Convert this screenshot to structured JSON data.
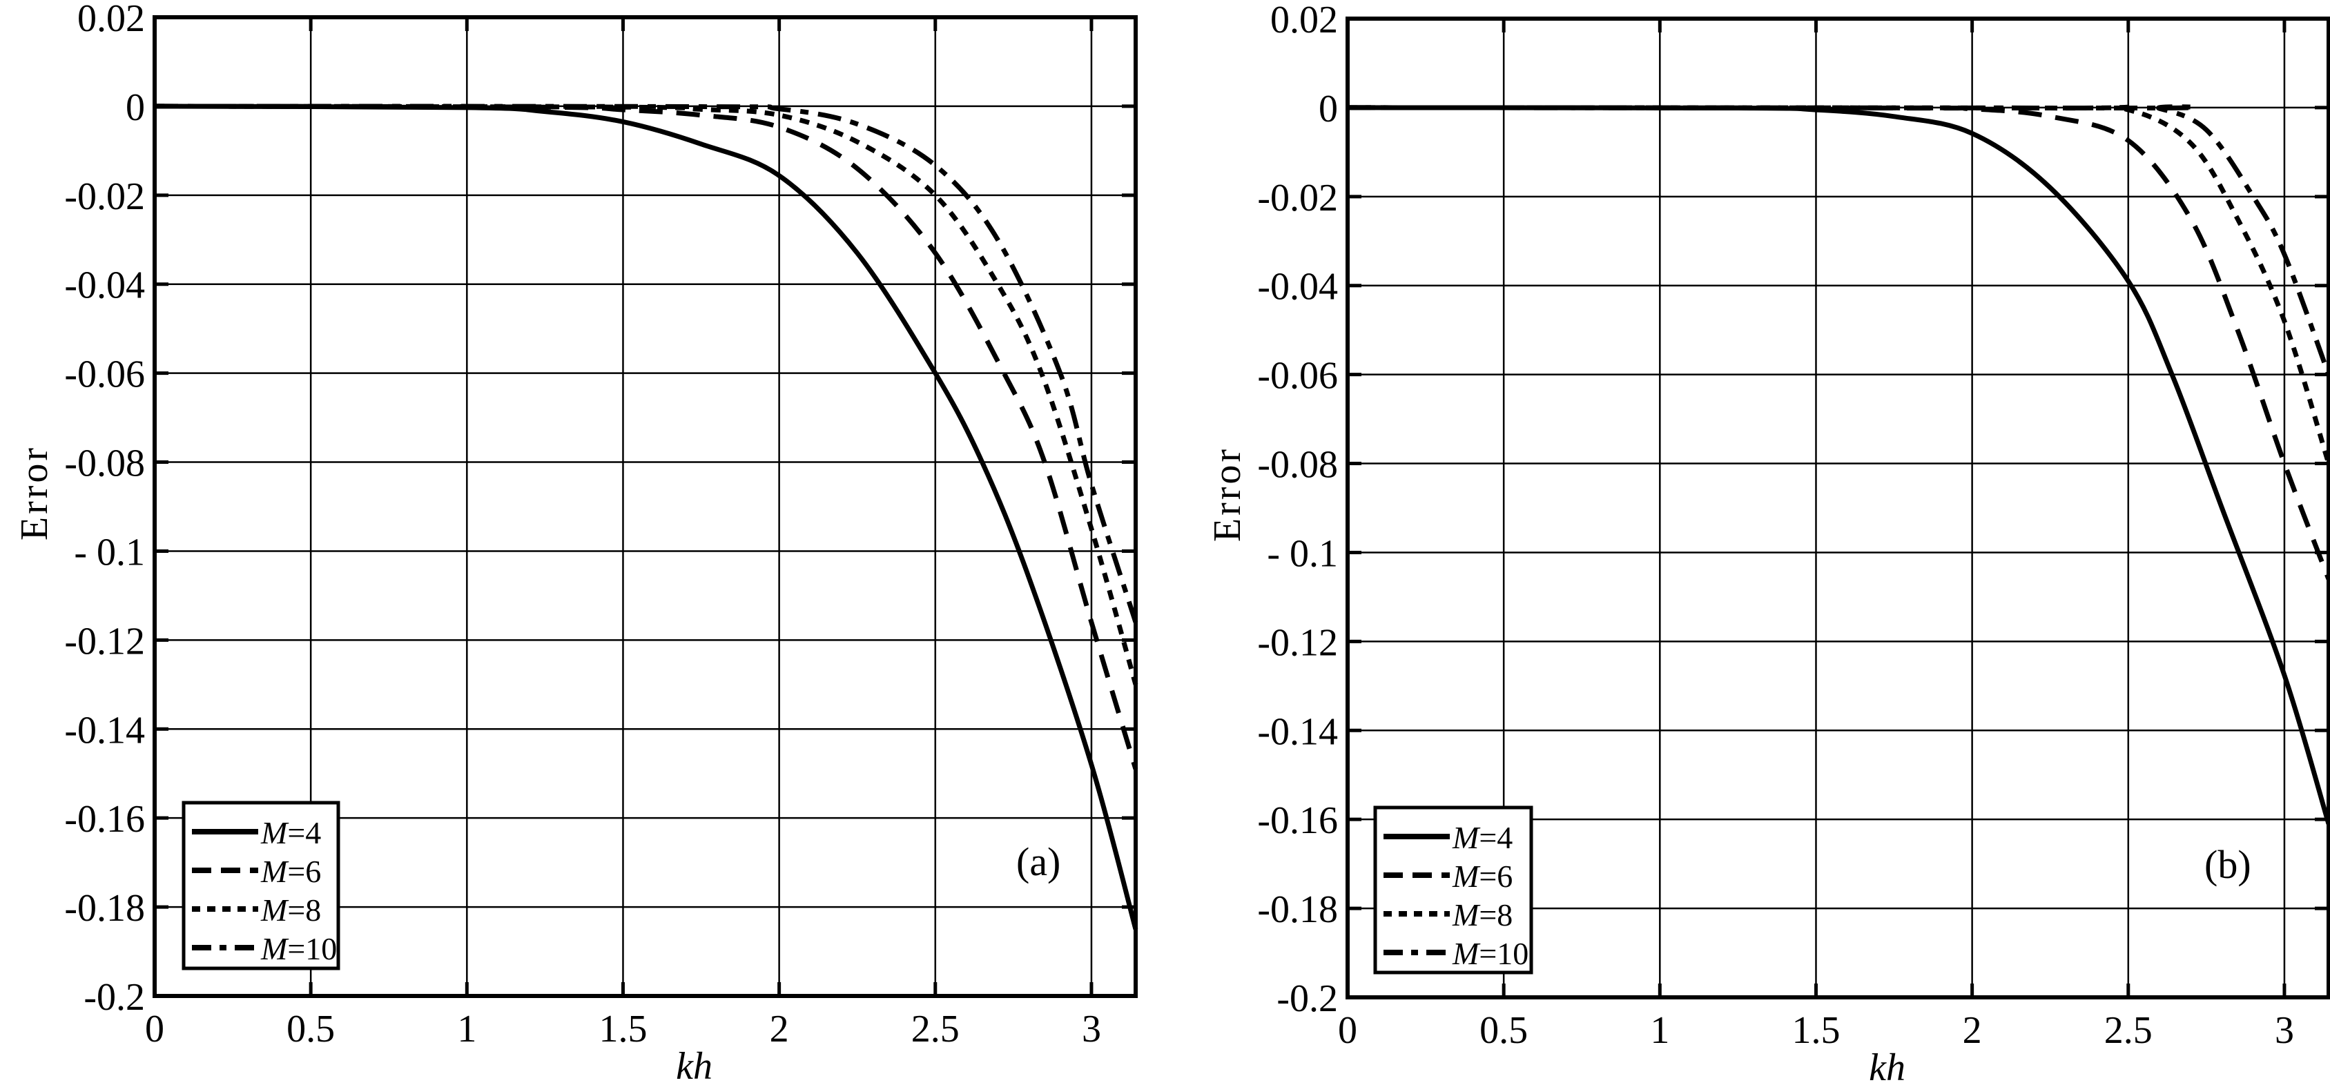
{
  "figure": {
    "panels": [
      {
        "id": "a",
        "panel_label": "(a)",
        "xlabel": "kh",
        "ylabel": "Error",
        "legend": [
          "M=4",
          "M=6",
          "M=8",
          "M=10"
        ]
      },
      {
        "id": "b",
        "panel_label": "(b)",
        "xlabel": "kh",
        "ylabel": "Error",
        "legend": [
          "M=4",
          "M=6",
          "M=8",
          "M=10"
        ]
      }
    ]
  },
  "chart_data": [
    {
      "type": "line",
      "title": "(a)",
      "xlabel": "kh",
      "ylabel": "Error",
      "xlim": [
        0,
        3.1416
      ],
      "ylim": [
        -0.2,
        0.02
      ],
      "xticks": [
        0,
        0.5,
        1,
        1.5,
        2,
        2.5,
        3
      ],
      "xtick_labels": [
        "0",
        "0.5",
        "1",
        "1.5",
        "2",
        "2.5",
        "3"
      ],
      "yticks": [
        0.02,
        0,
        -0.02,
        -0.04,
        -0.06,
        -0.08,
        -0.1,
        -0.12,
        -0.14,
        -0.16,
        -0.18,
        -0.2
      ],
      "ytick_labels": [
        "0.02",
        "0",
        "-0.02",
        "-0.04",
        "-0.06",
        "-0.08",
        "- 0.1",
        "-0.12",
        "-0.14",
        "-0.16",
        "-0.18",
        "-0.2"
      ],
      "grid": true,
      "legend_position": "lower left",
      "series": [
        {
          "name": "M=4",
          "style": "solid",
          "x": [
            0,
            1.0,
            1.25,
            1.5,
            1.75,
            2.0,
            2.25,
            2.5,
            2.65,
            2.8,
            3.0,
            3.1416
          ],
          "y": [
            0,
            -0.0003,
            -0.0012,
            -0.0035,
            -0.0085,
            -0.0156,
            -0.033,
            -0.06,
            -0.08,
            -0.106,
            -0.148,
            -0.185
          ]
        },
        {
          "name": "M=6",
          "style": "dashed",
          "x": [
            0,
            1.25,
            1.5,
            1.75,
            2.0,
            2.25,
            2.5,
            2.72,
            2.85,
            3.0,
            3.1416
          ],
          "y": [
            0,
            -0.0002,
            -0.0008,
            -0.002,
            -0.0047,
            -0.014,
            -0.033,
            -0.06,
            -0.08,
            -0.116,
            -0.149
          ]
        },
        {
          "name": "M=8",
          "style": "dotted",
          "x": [
            0,
            1.5,
            1.75,
            2.0,
            2.25,
            2.5,
            2.7,
            2.84,
            3.0,
            3.1416
          ],
          "y": [
            0,
            -0.0002,
            -0.0007,
            -0.002,
            -0.008,
            -0.02,
            -0.04,
            -0.06,
            -0.095,
            -0.13
          ]
        },
        {
          "name": "M=10",
          "style": "dashdot",
          "x": [
            0,
            1.75,
            2.0,
            2.25,
            2.5,
            2.7,
            2.9,
            3.0,
            3.1416
          ],
          "y": [
            0,
            -0.0001,
            -0.0006,
            -0.004,
            -0.0133,
            -0.03,
            -0.06,
            -0.085,
            -0.116
          ]
        }
      ]
    },
    {
      "type": "line",
      "title": "(b)",
      "xlabel": "kh",
      "ylabel": "Error",
      "xlim": [
        0,
        3.1416
      ],
      "ylim": [
        -0.2,
        0.02
      ],
      "xticks": [
        0,
        0.5,
        1,
        1.5,
        2,
        2.5,
        3
      ],
      "xtick_labels": [
        "0",
        "0.5",
        "1",
        "1.5",
        "2",
        "2.5",
        "3"
      ],
      "yticks": [
        0.02,
        0,
        -0.02,
        -0.04,
        -0.06,
        -0.08,
        -0.1,
        -0.12,
        -0.14,
        -0.16,
        -0.18,
        -0.2
      ],
      "ytick_labels": [
        "0.02",
        "0",
        "-0.02",
        "-0.04",
        "-0.06",
        "-0.08",
        "- 0.1",
        "-0.12",
        "-0.14",
        "-0.16",
        "-0.18",
        "-0.2"
      ],
      "grid": true,
      "legend_position": "lower left",
      "series": [
        {
          "name": "M=4",
          "style": "solid",
          "x": [
            0,
            1.25,
            1.5,
            1.75,
            2.0,
            2.25,
            2.5,
            2.64,
            2.8,
            3.0,
            3.1416
          ],
          "y": [
            0,
            -0.0001,
            -0.0005,
            -0.002,
            -0.0058,
            -0.018,
            -0.039,
            -0.06,
            -0.09,
            -0.1276,
            -0.161
          ]
        },
        {
          "name": "M=6",
          "style": "dashed",
          "x": [
            0,
            1.75,
            2.0,
            2.25,
            2.5,
            2.7,
            2.85,
            3.0,
            3.1416
          ],
          "y": [
            0,
            -0.0001,
            -0.0003,
            -0.002,
            -0.0074,
            -0.025,
            -0.05,
            -0.08,
            -0.106
          ]
        },
        {
          "name": "M=8",
          "style": "dotted",
          "x": [
            0,
            2.25,
            2.5,
            2.7,
            2.85,
            3.0,
            3.1416
          ],
          "y": [
            0,
            -0.0001,
            -0.0005,
            -0.008,
            -0.025,
            -0.048,
            -0.08
          ]
        },
        {
          "name": "M=10",
          "style": "dashdot",
          "x": [
            0,
            2.5,
            2.6,
            2.75,
            2.9,
            3.0,
            3.1416
          ],
          "y": [
            0,
            -0.0001,
            -0.0002,
            -0.005,
            -0.02,
            -0.033,
            -0.06
          ]
        }
      ]
    }
  ]
}
